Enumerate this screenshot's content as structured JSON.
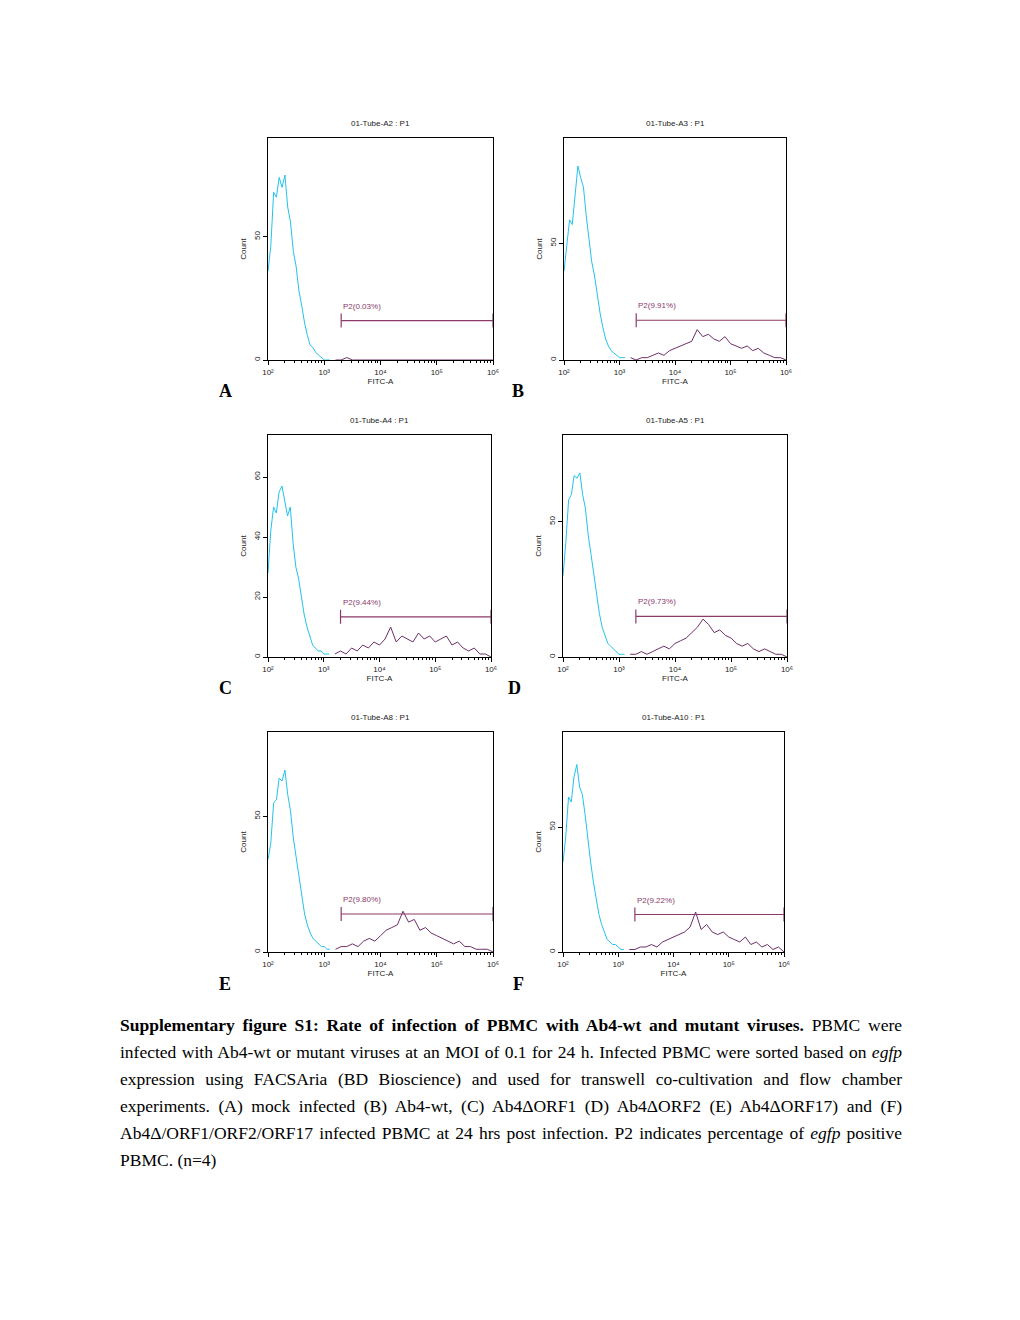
{
  "chart_data": [
    {
      "type": "line",
      "title": "01-Tube-A2 : P1",
      "panel_label": "A",
      "x_label": "FITC-A",
      "y_label": "Count",
      "log": "x",
      "grid": false,
      "xlim": [
        100,
        1000000
      ],
      "xticks": [
        {
          "value": 100,
          "label": "10²"
        },
        {
          "value": 1000,
          "label": "10³"
        },
        {
          "value": 10000,
          "label": "10⁴"
        },
        {
          "value": 100000,
          "label": "10⁵"
        },
        {
          "value": 1000000,
          "label": "10⁶"
        }
      ],
      "ylim": [
        0,
        90
      ],
      "yticks": [
        0,
        50
      ],
      "gate": {
        "label": "P2(0.03%)",
        "x": [
          2000,
          1000000
        ],
        "y": 16,
        "color": "#8b3a6a"
      },
      "series": [
        {
          "color": "#22c3ee",
          "x": [
            100,
            112,
            126,
            141,
            158,
            178,
            200,
            224,
            251,
            282,
            316,
            355,
            398,
            447,
            501,
            562,
            631,
            708,
            794,
            891,
            1000,
            1122,
            1259
          ],
          "values": [
            36,
            46,
            68,
            66,
            74,
            70,
            75,
            62,
            56,
            44,
            38,
            28,
            22,
            15,
            10,
            6,
            5,
            3,
            2,
            1,
            0,
            0,
            0
          ]
        },
        {
          "color": "#6e2f68",
          "x": [
            1585,
            1995,
            2512,
            3162,
            3981,
            5012,
            6310,
            7943,
            10000,
            12589,
            15849,
            19953,
            25119,
            31623,
            39811,
            50119,
            63096,
            79433,
            100000,
            125893,
            158489,
            199526,
            251189,
            316228,
            398107,
            501187,
            630957,
            794328,
            1000000
          ],
          "values": [
            0,
            0,
            1,
            0,
            0,
            0,
            0,
            0,
            0,
            0,
            0,
            0,
            0,
            0,
            0,
            0,
            0,
            0,
            0,
            0,
            0,
            0,
            0,
            0,
            0,
            0,
            0,
            0,
            0
          ]
        }
      ]
    },
    {
      "type": "line",
      "title": "01-Tube-A3 : P1",
      "panel_label": "B",
      "x_label": "FITC-A",
      "y_label": "Count",
      "log": "x",
      "grid": false,
      "xlim": [
        100,
        1000000
      ],
      "xticks": [
        {
          "value": 100,
          "label": "10²"
        },
        {
          "value": 1000,
          "label": "10³"
        },
        {
          "value": 10000,
          "label": "10⁴"
        },
        {
          "value": 100000,
          "label": "10⁵"
        },
        {
          "value": 1000000,
          "label": "10⁶"
        }
      ],
      "ylim": [
        0,
        95
      ],
      "yticks": [
        0,
        50
      ],
      "gate": {
        "label": "P2(9.91%)",
        "x": [
          2000,
          1000000
        ],
        "y": 17,
        "color": "#8b3a6a"
      },
      "series": [
        {
          "color": "#22c3ee",
          "x": [
            100,
            112,
            126,
            141,
            158,
            178,
            200,
            224,
            251,
            282,
            316,
            355,
            398,
            447,
            501,
            562,
            631,
            708,
            794,
            891,
            1000,
            1122,
            1259
          ],
          "values": [
            38,
            50,
            60,
            58,
            72,
            83,
            78,
            74,
            62,
            52,
            42,
            36,
            27,
            20,
            14,
            9,
            6,
            4,
            3,
            2,
            1,
            1,
            1
          ]
        },
        {
          "color": "#6e2f68",
          "x": [
            1585,
            1995,
            2512,
            3162,
            3981,
            5012,
            6310,
            7943,
            10000,
            12589,
            15849,
            19953,
            25119,
            31623,
            39811,
            50119,
            63096,
            79433,
            100000,
            125893,
            158489,
            199526,
            251189,
            316228,
            398107,
            501187,
            630957,
            794328,
            1000000
          ],
          "values": [
            1,
            0,
            1,
            1,
            2,
            3,
            2,
            4,
            5,
            6,
            7,
            8,
            13,
            10,
            11,
            9,
            8,
            10,
            7,
            6,
            5,
            6,
            4,
            5,
            3,
            2,
            1,
            1,
            0
          ]
        }
      ]
    },
    {
      "type": "line",
      "title": "01-Tube-A4 : P1",
      "panel_label": "C",
      "x_label": "FITC-A",
      "y_label": "Count",
      "log": "x",
      "grid": false,
      "xlim": [
        100,
        1000000
      ],
      "xticks": [
        {
          "value": 100,
          "label": "10²"
        },
        {
          "value": 1000,
          "label": "10³"
        },
        {
          "value": 10000,
          "label": "10⁴"
        },
        {
          "value": 100000,
          "label": "10⁵"
        },
        {
          "value": 1000000,
          "label": "10⁶"
        }
      ],
      "ylim": [
        0,
        74
      ],
      "yticks": [
        0,
        20,
        40,
        60
      ],
      "gate": {
        "label": "P2(9.44%)",
        "x": [
          2000,
          1000000
        ],
        "y": 13.4,
        "color": "#8b3a6a"
      },
      "series": [
        {
          "color": "#22c3ee",
          "x": [
            100,
            112,
            126,
            141,
            158,
            178,
            200,
            224,
            251,
            282,
            316,
            355,
            398,
            447,
            501,
            562,
            631,
            708,
            794,
            891,
            1000,
            1122,
            1259
          ],
          "values": [
            28,
            42,
            50,
            48,
            55,
            57,
            52,
            47,
            50,
            38,
            30,
            26,
            20,
            14,
            10,
            7,
            4,
            3,
            2,
            2,
            1,
            1,
            1
          ]
        },
        {
          "color": "#6e2f68",
          "x": [
            1585,
            1995,
            2512,
            3162,
            3981,
            5012,
            6310,
            7943,
            10000,
            12589,
            15849,
            19953,
            25119,
            31623,
            39811,
            50119,
            63096,
            79433,
            100000,
            125893,
            158489,
            199526,
            251189,
            316228,
            398107,
            501187,
            630957,
            794328,
            1000000
          ],
          "values": [
            1,
            2,
            1,
            3,
            2,
            4,
            3,
            5,
            4,
            6,
            10,
            5,
            7,
            6,
            5,
            8,
            6,
            7,
            5,
            6,
            7,
            4,
            5,
            3,
            2,
            3,
            1,
            1,
            0
          ]
        }
      ]
    },
    {
      "type": "line",
      "title": "01-Tube-A5 : P1",
      "panel_label": "D",
      "x_label": "FITC-A",
      "y_label": "Count",
      "log": "x",
      "grid": false,
      "xlim": [
        100,
        1000000
      ],
      "xticks": [
        {
          "value": 100,
          "label": "10²"
        },
        {
          "value": 1000,
          "label": "10³"
        },
        {
          "value": 10000,
          "label": "10⁴"
        },
        {
          "value": 100000,
          "label": "10⁵"
        },
        {
          "value": 1000000,
          "label": "10⁶"
        }
      ],
      "ylim": [
        0,
        82
      ],
      "yticks": [
        0,
        50
      ],
      "gate": {
        "label": "P2(9.73%)",
        "x": [
          2000,
          1000000
        ],
        "y": 15,
        "color": "#8b3a6a"
      },
      "series": [
        {
          "color": "#22c3ee",
          "x": [
            100,
            112,
            126,
            141,
            158,
            178,
            200,
            224,
            251,
            282,
            316,
            355,
            398,
            447,
            501,
            562,
            631,
            708,
            794,
            891,
            1000,
            1122,
            1259
          ],
          "values": [
            30,
            42,
            58,
            60,
            67,
            66,
            68,
            60,
            55,
            45,
            38,
            30,
            24,
            16,
            11,
            8,
            5,
            4,
            3,
            2,
            1,
            1,
            1
          ]
        },
        {
          "color": "#6e2f68",
          "x": [
            1585,
            1995,
            2512,
            3162,
            3981,
            5012,
            6310,
            7943,
            10000,
            12589,
            15849,
            19953,
            25119,
            31623,
            39811,
            50119,
            63096,
            79433,
            100000,
            125893,
            158489,
            199526,
            251189,
            316228,
            398107,
            501187,
            630957,
            794328,
            1000000
          ],
          "values": [
            1,
            1,
            2,
            1,
            2,
            3,
            4,
            3,
            5,
            6,
            7,
            9,
            11,
            14,
            12,
            9,
            10,
            8,
            7,
            5,
            4,
            5,
            3,
            2,
            3,
            2,
            1,
            1,
            0
          ]
        }
      ]
    },
    {
      "type": "line",
      "title": "01-Tube-A8 : P1",
      "panel_label": "E",
      "x_label": "FITC-A",
      "y_label": "Count",
      "log": "x",
      "grid": false,
      "xlim": [
        100,
        1000000
      ],
      "xticks": [
        {
          "value": 100,
          "label": "10²"
        },
        {
          "value": 1000,
          "label": "10³"
        },
        {
          "value": 10000,
          "label": "10⁴"
        },
        {
          "value": 100000,
          "label": "10⁵"
        },
        {
          "value": 1000000,
          "label": "10⁶"
        }
      ],
      "ylim": [
        0,
        81
      ],
      "yticks": [
        0,
        50
      ],
      "gate": {
        "label": "P2(9.80%)",
        "x": [
          2000,
          1000000
        ],
        "y": 14,
        "color": "#8b3a6a"
      },
      "series": [
        {
          "color": "#22c3ee",
          "x": [
            100,
            112,
            126,
            141,
            158,
            178,
            200,
            224,
            251,
            282,
            316,
            355,
            398,
            447,
            501,
            562,
            631,
            708,
            794,
            891,
            1000,
            1122,
            1259
          ],
          "values": [
            34,
            40,
            55,
            56,
            64,
            63,
            67,
            58,
            52,
            42,
            35,
            28,
            21,
            14,
            10,
            7,
            5,
            4,
            3,
            2,
            2,
            1,
            1
          ]
        },
        {
          "color": "#6e2f68",
          "x": [
            1585,
            1995,
            2512,
            3162,
            3981,
            5012,
            6310,
            7943,
            10000,
            12589,
            15849,
            19953,
            25119,
            31623,
            39811,
            50119,
            63096,
            79433,
            100000,
            125893,
            158489,
            199526,
            251189,
            316228,
            398107,
            501187,
            630957,
            794328,
            1000000
          ],
          "values": [
            1,
            2,
            2,
            3,
            2,
            4,
            5,
            4,
            6,
            8,
            9,
            10,
            15,
            11,
            12,
            8,
            9,
            7,
            6,
            5,
            4,
            3,
            4,
            2,
            2,
            1,
            1,
            1,
            0
          ]
        }
      ]
    },
    {
      "type": "line",
      "title": "01-Tube-A10 : P1",
      "panel_label": "F",
      "x_label": "FITC-A",
      "y_label": "Count",
      "log": "x",
      "grid": false,
      "xlim": [
        100,
        1000000
      ],
      "xticks": [
        {
          "value": 100,
          "label": "10²"
        },
        {
          "value": 1000,
          "label": "10³"
        },
        {
          "value": 10000,
          "label": "10⁴"
        },
        {
          "value": 100000,
          "label": "10⁵"
        },
        {
          "value": 1000000,
          "label": "10⁶"
        }
      ],
      "ylim": [
        0,
        88
      ],
      "yticks": [
        0,
        50
      ],
      "gate": {
        "label": "P2(9.22%)",
        "x": [
          2000,
          1000000
        ],
        "y": 15,
        "color": "#8b3a6a"
      },
      "series": [
        {
          "color": "#22c3ee",
          "x": [
            100,
            112,
            126,
            141,
            158,
            178,
            200,
            224,
            251,
            282,
            316,
            355,
            398,
            447,
            501,
            562,
            631,
            708,
            794,
            891,
            1000,
            1122,
            1259
          ],
          "values": [
            36,
            46,
            62,
            60,
            70,
            75,
            66,
            63,
            55,
            44,
            36,
            28,
            22,
            15,
            11,
            8,
            5,
            4,
            3,
            3,
            2,
            1,
            1
          ]
        },
        {
          "color": "#6e2f68",
          "x": [
            1585,
            1995,
            2512,
            3162,
            3981,
            5012,
            6310,
            7943,
            10000,
            12589,
            15849,
            19953,
            25119,
            31623,
            39811,
            50119,
            63096,
            79433,
            100000,
            125893,
            158489,
            199526,
            251189,
            316228,
            398107,
            501187,
            630957,
            794328,
            1000000
          ],
          "values": [
            1,
            1,
            2,
            2,
            3,
            2,
            4,
            5,
            6,
            7,
            8,
            10,
            16,
            9,
            11,
            8,
            7,
            8,
            6,
            5,
            4,
            6,
            3,
            4,
            2,
            3,
            1,
            2,
            0
          ]
        }
      ]
    }
  ],
  "caption": {
    "title": "Supplementary figure S1: Rate of infection of PBMC with Ab4-wt and mutant viruses.",
    "body": [
      {
        "text": "PBMC were infected with Ab4-wt or mutant viruses at an MOI of 0.1 for 24 h. Infected PBMC were sorted based on "
      },
      {
        "text": "egfp",
        "italic": true
      },
      {
        "text": " expression using FACSAria (BD Bioscience) and used for transwell co-cultivation and flow chamber experiments. (A) mock infected (B) Ab4-wt, (C) Ab4ΔORF1 (D) Ab4ΔORF2 (E) Ab4ΔORF17) and (F) Ab4Δ/ORF1/ORF2/ORF17 infected PBMC at 24 hrs post infection. P2 indicates percentage of "
      },
      {
        "text": "egfp",
        "italic": true
      },
      {
        "text": " positive PBMC. (n=4)"
      }
    ]
  }
}
